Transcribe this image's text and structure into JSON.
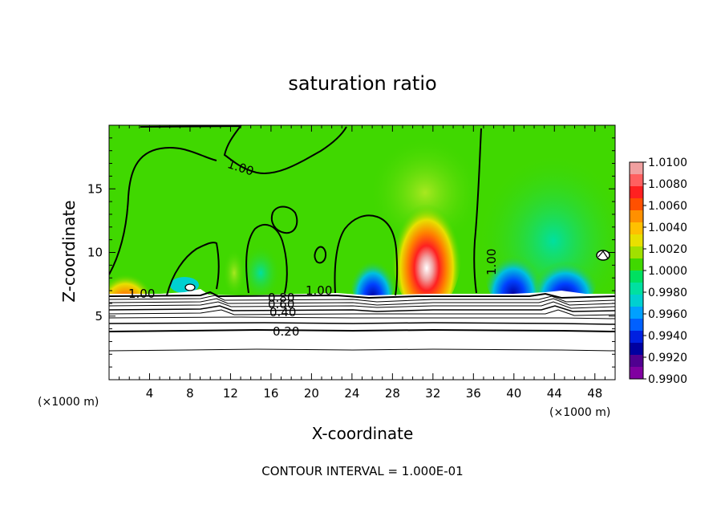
{
  "chart_data": {
    "type": "heatmap",
    "title": "saturation ratio",
    "xlabel": "X-coordinate",
    "ylabel": "Z-coordinate",
    "x_unit_label": "(×1000 m)",
    "x_unit_label_right": "(×1000 m)",
    "xlim": [
      0,
      50
    ],
    "ylim": [
      0,
      20
    ],
    "x_ticks": [
      4,
      8,
      12,
      16,
      20,
      24,
      28,
      32,
      36,
      40,
      44,
      48
    ],
    "y_ticks": [
      5,
      10,
      15
    ],
    "footer": "CONTOUR INTERVAL = 1.000E-01",
    "colorbar": {
      "labels": [
        "1.0100",
        "1.0080",
        "1.0060",
        "1.0040",
        "1.0020",
        "1.0000",
        "0.9980",
        "0.9960",
        "0.9940",
        "0.9920",
        "0.9900"
      ],
      "colors": [
        "#f0a0a0",
        "#ff6060",
        "#ff2020",
        "#ff5000",
        "#ff9000",
        "#ffc000",
        "#e8e000",
        "#a0e000",
        "#40d800",
        "#00e060",
        "#00e0a0",
        "#00d0d0",
        "#00a0ff",
        "#0060ff",
        "#0020e0",
        "#0000a0",
        "#500090",
        "#8000a0"
      ]
    },
    "contour_labels": [
      "1.00",
      "1.00",
      "1.00",
      "1.00",
      "0.80",
      "0.60",
      "0.40",
      "0.20"
    ],
    "hotspots": [
      {
        "x": 31,
        "z": 9.5,
        "value": 1.01,
        "kind": "max"
      },
      {
        "x": 3,
        "z": 8.0,
        "value": 1.004,
        "kind": "max"
      },
      {
        "x": 25.5,
        "z": 8.5,
        "value": 0.992,
        "kind": "min"
      },
      {
        "x": 42,
        "z": 8.0,
        "value": 0.991,
        "kind": "min"
      }
    ],
    "terrain_top_z": 6.9,
    "background_value": 1.0
  }
}
